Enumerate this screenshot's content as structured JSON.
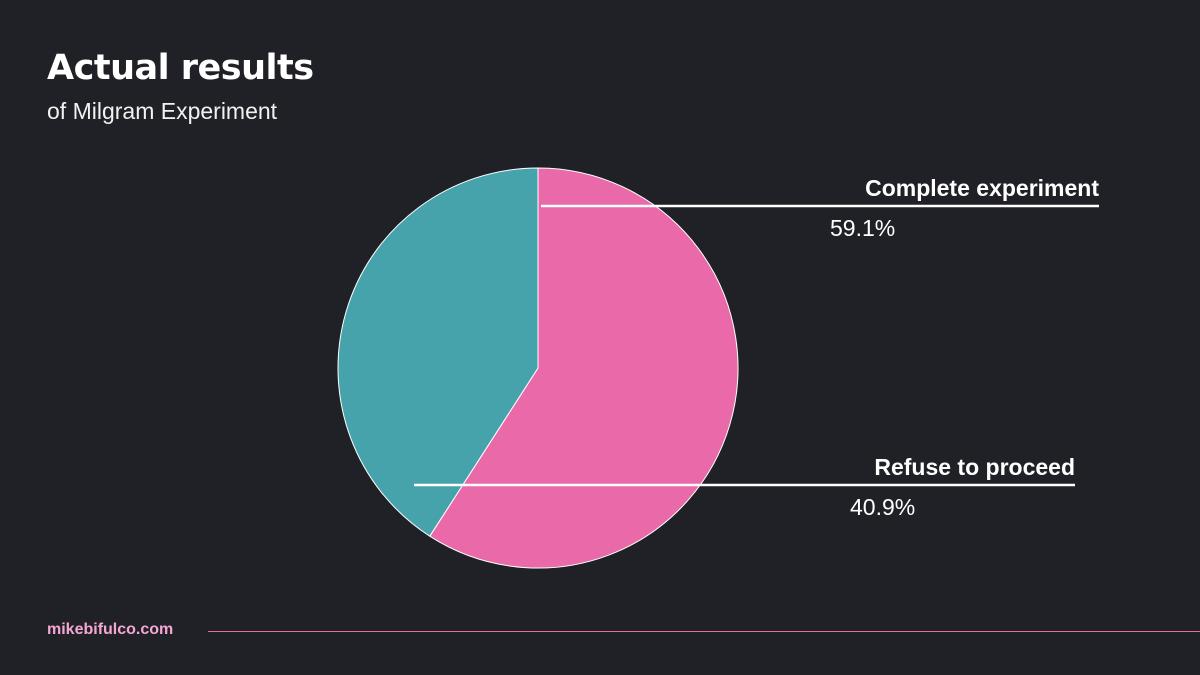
{
  "header": {
    "title": "Actual results",
    "subtitle": "of Milgram Experiment"
  },
  "footer": {
    "site": "mikebifulco.com"
  },
  "colors": {
    "background": "#202126",
    "accent": "#E969A9",
    "teal": "#47A3AB",
    "text": "#FFFFFF",
    "footer_text": "#F5A7D3"
  },
  "chart_data": {
    "type": "pie",
    "title": "Actual results",
    "subtitle": "of Milgram Experiment",
    "slices": [
      {
        "label": "Complete experiment",
        "value": 59.1,
        "display": "59.1%",
        "color": "#E969A9"
      },
      {
        "label": "Refuse to proceed",
        "value": 40.9,
        "display": "40.9%",
        "color": "#47A3AB"
      }
    ],
    "start": "top",
    "direction": "clockwise",
    "legend": "callout labels on the right"
  }
}
